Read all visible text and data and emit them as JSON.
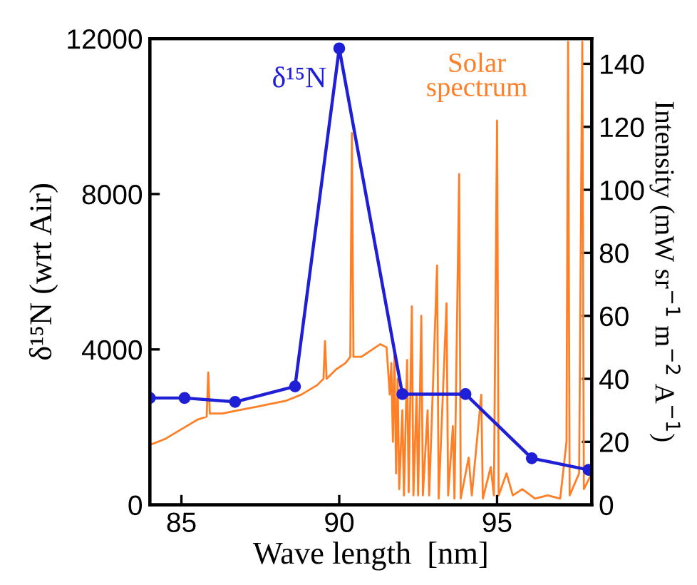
{
  "chart_data": {
    "type": "line",
    "xlabel": "Wave length  [nm]",
    "ylabel": "δ¹⁵N (wrt Air)",
    "y2label": "Intensity (mW sr$^{−1}$ m$^{−2}$ A$^{−1}$)",
    "xlim": [
      84,
      98
    ],
    "xticks": [
      85,
      90,
      95
    ],
    "ylim": [
      0,
      12000
    ],
    "yticks": [
      0,
      4000,
      8000,
      12000
    ],
    "y2lim": [
      0,
      148
    ],
    "y2ticks": [
      0,
      20,
      40,
      60,
      80,
      100,
      120,
      140
    ],
    "grid": false,
    "legend": false,
    "series": [
      {
        "name": "Solar\nspectrum",
        "color": "#ff7f27",
        "axis": "y2",
        "marker": "none",
        "x": [
          84.0,
          84.5,
          85.0,
          85.5,
          85.8,
          85.85,
          85.9,
          86.3,
          86.8,
          87.3,
          87.8,
          88.3,
          88.8,
          89.3,
          89.5,
          89.55,
          89.6,
          89.9,
          90.2,
          90.35,
          90.4,
          90.45,
          90.7,
          91.0,
          91.3,
          91.5,
          91.6,
          91.65,
          91.7,
          91.75,
          91.8,
          91.85,
          91.9,
          92.0,
          92.05,
          92.15,
          92.2,
          92.3,
          92.35,
          92.45,
          92.5,
          92.6,
          92.65,
          92.8,
          92.85,
          93.1,
          93.15,
          93.4,
          93.45,
          93.6,
          93.65,
          93.8,
          93.85,
          94.1,
          94.2,
          94.5,
          94.55,
          94.8,
          94.9,
          95.0,
          95.05,
          95.3,
          95.5,
          95.8,
          96.2,
          96.6,
          97.0,
          97.2,
          97.25,
          97.3,
          97.6,
          97.7,
          97.75,
          97.9,
          98.0
        ],
        "values": [
          19,
          21,
          24,
          27,
          28,
          42,
          29,
          29,
          30,
          31,
          32,
          33,
          35,
          38,
          40,
          52,
          40,
          43,
          45,
          47,
          118,
          47,
          47,
          49,
          51,
          50,
          35,
          45,
          20,
          48,
          10,
          40,
          5,
          30,
          3,
          46,
          4,
          63,
          3,
          35,
          3,
          60,
          3,
          30,
          3,
          76,
          2,
          64,
          3,
          25,
          2,
          105,
          2,
          15,
          3,
          35,
          2,
          12,
          3,
          122,
          3,
          10,
          3,
          5,
          2,
          3,
          2,
          20,
          147,
          3,
          10,
          147,
          5,
          8,
          10
        ]
      },
      {
        "name": "δ¹⁵N",
        "color": "#1f1fd6",
        "axis": "y",
        "marker": "circle",
        "x": [
          84.0,
          85.1,
          86.7,
          88.6,
          90.0,
          92.0,
          94.0,
          96.1,
          97.9
        ],
        "values": [
          2750,
          2750,
          2650,
          3050,
          11750,
          2850,
          2850,
          1200,
          900
        ]
      }
    ]
  }
}
